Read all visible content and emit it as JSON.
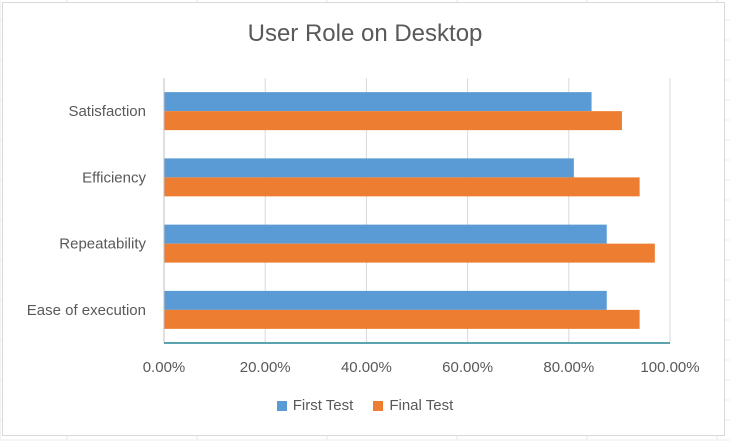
{
  "chart_data": {
    "type": "bar",
    "orientation": "horizontal",
    "title": "User Role on Desktop",
    "xlabel": "",
    "ylabel": "",
    "categories": [
      "Ease of execution",
      "Repeatability",
      "Efficiency",
      "Satisfaction"
    ],
    "series": [
      {
        "name": "First Test",
        "color": "#5b9bd5",
        "values": [
          87.5,
          87.5,
          81.0,
          84.5
        ]
      },
      {
        "name": "Final Test",
        "color": "#ed7d31",
        "values": [
          94.0,
          97.0,
          94.0,
          90.5
        ]
      }
    ],
    "xlim": [
      0,
      100
    ],
    "xticks": [
      "0.00%",
      "20.00%",
      "40.00%",
      "60.00%",
      "80.00%",
      "100.00%"
    ],
    "grid": true,
    "legend_position": "bottom"
  }
}
